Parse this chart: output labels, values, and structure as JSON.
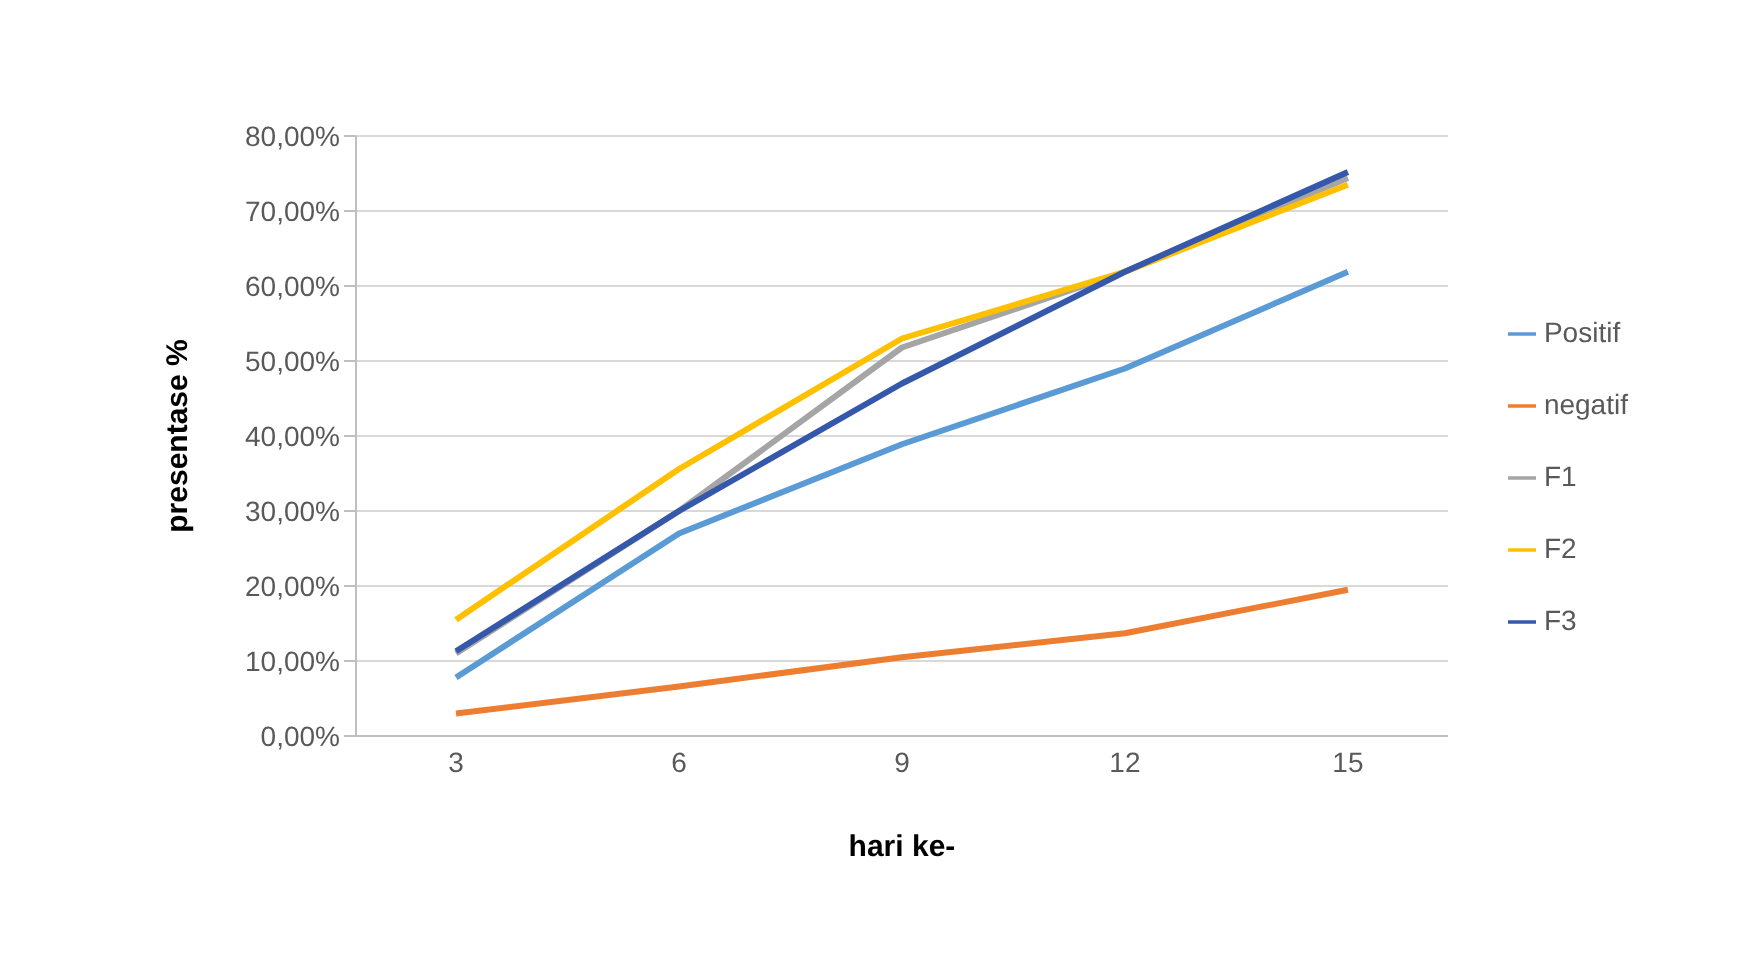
{
  "chart_data": {
    "type": "line",
    "xlabel": "hari ke-",
    "ylabel": "presentase %",
    "categories": [
      "3",
      "6",
      "9",
      "12",
      "15"
    ],
    "series": [
      {
        "name": "Positif",
        "color": "#5b9bd5",
        "values": [
          7.8,
          27,
          38.9,
          49,
          61.9
        ]
      },
      {
        "name": "negatif",
        "color": "#ed7d31",
        "values": [
          3,
          6.6,
          10.5,
          13.7,
          19.5
        ]
      },
      {
        "name": "F1",
        "color": "#a5a5a5",
        "values": [
          11,
          30,
          51.8,
          61.9,
          74.4
        ]
      },
      {
        "name": "F2",
        "color": "#ffc000",
        "values": [
          15.5,
          35.6,
          53,
          61.9,
          73.5
        ]
      },
      {
        "name": "F3",
        "color": "#3558ab",
        "values": [
          11.3,
          30,
          47,
          61.9,
          75.2
        ]
      }
    ],
    "ylim": [
      0,
      80
    ],
    "yticks": [
      {
        "value": 0,
        "label": "0,00%"
      },
      {
        "value": 10,
        "label": "10,00%"
      },
      {
        "value": 20,
        "label": "20,00%"
      },
      {
        "value": 30,
        "label": "30,00%"
      },
      {
        "value": 40,
        "label": "40,00%"
      },
      {
        "value": 50,
        "label": "50,00%"
      },
      {
        "value": 60,
        "label": "60,00%"
      },
      {
        "value": 70,
        "label": "70,00%"
      },
      {
        "value": 80,
        "label": "80,00%"
      }
    ],
    "grid": "y",
    "legend": "right",
    "marker": "none",
    "line_style": "solid"
  }
}
